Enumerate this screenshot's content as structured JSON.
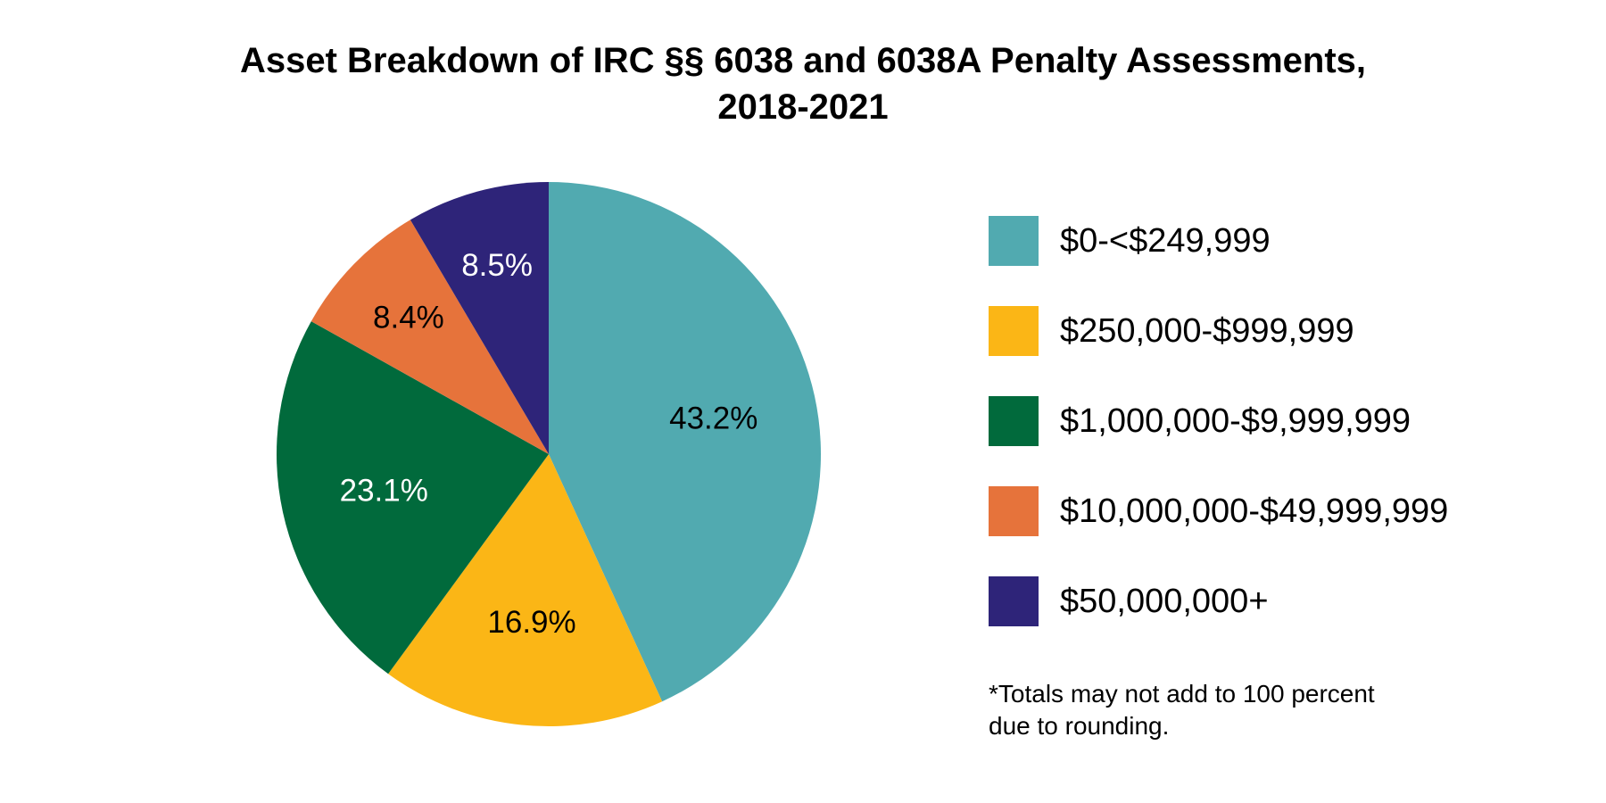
{
  "chart_data": {
    "type": "pie",
    "title_lines": [
      "Asset Breakdown of IRC §§ 6038 and 6038A Penalty Assessments,",
      "2018-2021"
    ],
    "slices": [
      {
        "label": "$0-<$249,999",
        "value": 43.2,
        "display": "43.2%",
        "color": "#51aab0",
        "text_color": "#000000"
      },
      {
        "label": "$250,000-$999,999",
        "value": 16.9,
        "display": "16.9%",
        "color": "#fbb616",
        "text_color": "#000000"
      },
      {
        "label": "$1,000,000-$9,999,999",
        "value": 23.1,
        "display": "23.1%",
        "color": "#016a3c",
        "text_color": "#ffffff"
      },
      {
        "label": "$10,000,000-$49,999,999",
        "value": 8.4,
        "display": "8.4%",
        "color": "#e6733b",
        "text_color": "#000000"
      },
      {
        "label": "$50,000,000+",
        "value": 8.5,
        "display": "8.5%",
        "color": "#2e2479",
        "text_color": "#ffffff"
      }
    ],
    "start": "top",
    "direction": "clockwise",
    "legend_position": "right",
    "footnote_lines": [
      "*Totals may not add to 100 percent",
      "due to rounding."
    ]
  }
}
